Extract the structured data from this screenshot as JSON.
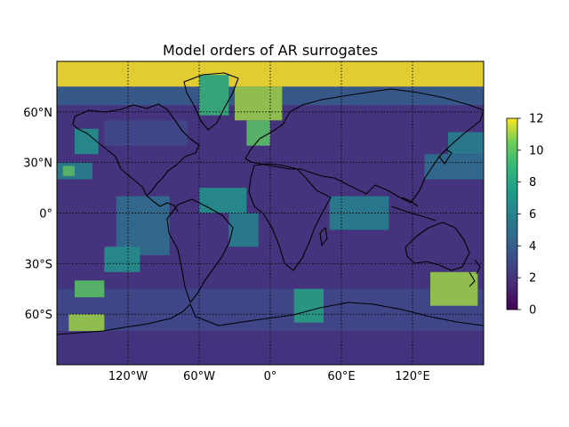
{
  "chart_data": {
    "type": "heatmap",
    "title": "Model orders of AR surrogates",
    "projection": "plate-carree",
    "xlim": [
      -180,
      180
    ],
    "ylim": [
      -90,
      90
    ],
    "x_ticks": [
      {
        "value": -120,
        "label": "120°W"
      },
      {
        "value": -60,
        "label": "60°W"
      },
      {
        "value": 0,
        "label": "0°"
      },
      {
        "value": 60,
        "label": "60°E"
      },
      {
        "value": 120,
        "label": "120°E"
      }
    ],
    "y_ticks": [
      {
        "value": 60,
        "label": "60°N"
      },
      {
        "value": 30,
        "label": "30°N"
      },
      {
        "value": 0,
        "label": "0°"
      },
      {
        "value": -30,
        "label": "30°S"
      },
      {
        "value": -60,
        "label": "60°S"
      }
    ],
    "grid": true,
    "grid_style": "dotted",
    "colormap": "viridis",
    "alpha": 0.85,
    "colorbar": {
      "min": 0,
      "max": 12,
      "ticks": [
        "0",
        "2",
        "4",
        "6",
        "8",
        "10",
        "12"
      ],
      "placement": "right"
    },
    "coastlines": true,
    "background_order": 2,
    "regions": [
      {
        "lon": [
          -180,
          180
        ],
        "lat": [
          75,
          90
        ],
        "value": 12
      },
      {
        "lon": [
          -180,
          180
        ],
        "lat": [
          64,
          75
        ],
        "value": 4
      },
      {
        "lon": [
          -60,
          -35
        ],
        "lat": [
          58,
          82
        ],
        "value": 9
      },
      {
        "lon": [
          -30,
          10
        ],
        "lat": [
          55,
          75
        ],
        "value": 11
      },
      {
        "lon": [
          -20,
          0
        ],
        "lat": [
          40,
          55
        ],
        "value": 10
      },
      {
        "lon": [
          -165,
          -145
        ],
        "lat": [
          35,
          50
        ],
        "value": 7
      },
      {
        "lon": [
          -140,
          -70
        ],
        "lat": [
          40,
          55
        ],
        "value": 3
      },
      {
        "lon": [
          150,
          180
        ],
        "lat": [
          35,
          48
        ],
        "value": 6
      },
      {
        "lon": [
          130,
          180
        ],
        "lat": [
          20,
          35
        ],
        "value": 5
      },
      {
        "lon": [
          -180,
          -150
        ],
        "lat": [
          20,
          30
        ],
        "value": 6
      },
      {
        "lon": [
          -175,
          -165
        ],
        "lat": [
          22,
          28
        ],
        "value": 10
      },
      {
        "lon": [
          -130,
          -85
        ],
        "lat": [
          -25,
          10
        ],
        "value": 5
      },
      {
        "lon": [
          -60,
          -20
        ],
        "lat": [
          0,
          15
        ],
        "value": 7
      },
      {
        "lon": [
          -35,
          -10
        ],
        "lat": [
          -20,
          0
        ],
        "value": 6
      },
      {
        "lon": [
          50,
          100
        ],
        "lat": [
          -10,
          10
        ],
        "value": 6
      },
      {
        "lon": [
          -180,
          180
        ],
        "lat": [
          -70,
          -45
        ],
        "value": 3
      },
      {
        "lon": [
          -170,
          -140
        ],
        "lat": [
          -75,
          -60
        ],
        "value": 11
      },
      {
        "lon": [
          -165,
          -140
        ],
        "lat": [
          -50,
          -40
        ],
        "value": 10
      },
      {
        "lon": [
          -140,
          -110
        ],
        "lat": [
          -35,
          -20
        ],
        "value": 7
      },
      {
        "lon": [
          20,
          45
        ],
        "lat": [
          -65,
          -45
        ],
        "value": 8
      },
      {
        "lon": [
          135,
          175
        ],
        "lat": [
          -55,
          -35
        ],
        "value": 11
      },
      {
        "lon": [
          -180,
          180
        ],
        "lat": [
          -90,
          -70
        ],
        "value": 2
      }
    ]
  }
}
